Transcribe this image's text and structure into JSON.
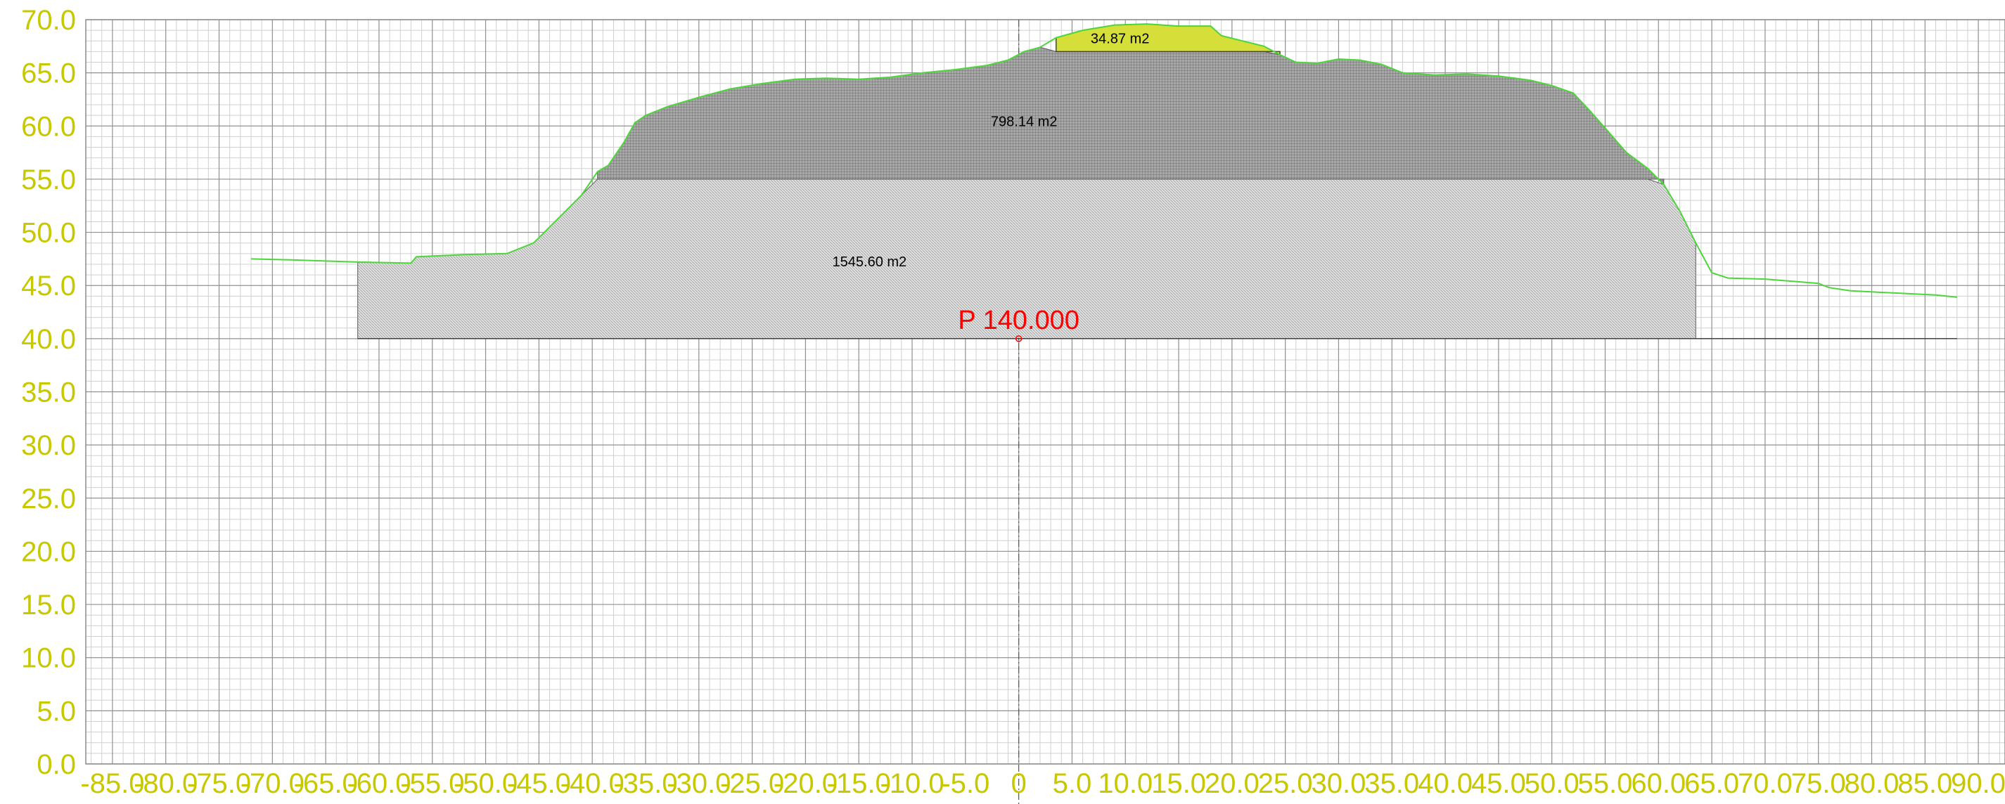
{
  "chart_data": {
    "type": "area",
    "title": "",
    "xlabel": "",
    "ylabel": "",
    "xlim": [
      -87.5,
      92.5
    ],
    "ylim": [
      0,
      70
    ],
    "grid": true,
    "y_ticks": [
      "0.0",
      "5.0",
      "10.0",
      "15.0",
      "20.0",
      "25.0",
      "30.0",
      "35.0",
      "40.0",
      "45.0",
      "50.0",
      "55.0",
      "60.0",
      "65.0",
      "70.0"
    ],
    "x_ticks": [
      "-85.0",
      "-80.0",
      "-75.0",
      "-70.0",
      "-65.0",
      "-60.0",
      "-55.0",
      "-50.0",
      "-45.0",
      "-40.0",
      "-35.0",
      "-30.0",
      "-25.0",
      "-20.0",
      "-15.0",
      "-10.0",
      "-5.0",
      "0",
      "5.0",
      "10.0",
      "15.0",
      "20.0",
      "25.0",
      "30.0",
      "35.0",
      "40.0",
      "45.0",
      "50.0",
      "55.0",
      "60.0",
      "65.0",
      "70.0",
      "75.0",
      "80.0",
      "85.0",
      "90.0"
    ],
    "station_label": "P 140.000",
    "station": {
      "x": 0,
      "y": 40
    },
    "datum_line": {
      "y": 40,
      "x_start": -62,
      "x_end": 62
    },
    "terrain_profile": [
      [
        -72,
        47.5
      ],
      [
        -68,
        47.4
      ],
      [
        -62,
        47.2
      ],
      [
        -57,
        47.1
      ],
      [
        -56.5,
        47.7
      ],
      [
        -52,
        47.9
      ],
      [
        -48,
        48.0
      ],
      [
        -45.5,
        49.0
      ],
      [
        -43.5,
        51.0
      ],
      [
        -41,
        53.5
      ],
      [
        -39.5,
        55.7
      ],
      [
        -38.5,
        56.3
      ],
      [
        -37,
        58.5
      ],
      [
        -36,
        60.3
      ],
      [
        -35,
        61.0
      ],
      [
        -33,
        61.8
      ],
      [
        -30,
        62.7
      ],
      [
        -27,
        63.5
      ],
      [
        -24,
        64.0
      ],
      [
        -21,
        64.4
      ],
      [
        -18,
        64.5
      ],
      [
        -15,
        64.4
      ],
      [
        -12,
        64.6
      ],
      [
        -9,
        65.0
      ],
      [
        -6,
        65.3
      ],
      [
        -3,
        65.7
      ],
      [
        -1,
        66.2
      ],
      [
        0.5,
        67.0
      ],
      [
        2,
        67.4
      ],
      [
        3.5,
        68.3
      ],
      [
        6,
        69.0
      ],
      [
        9,
        69.5
      ],
      [
        12,
        69.6
      ],
      [
        15,
        69.4
      ],
      [
        18,
        69.4
      ],
      [
        19,
        68.5
      ],
      [
        21,
        68.0
      ],
      [
        23,
        67.5
      ],
      [
        24.5,
        66.7
      ],
      [
        26,
        66.0
      ],
      [
        28,
        65.9
      ],
      [
        30,
        66.3
      ],
      [
        32,
        66.2
      ],
      [
        34,
        65.8
      ],
      [
        36,
        65.0
      ],
      [
        39,
        64.8
      ],
      [
        42,
        64.9
      ],
      [
        45,
        64.7
      ],
      [
        48,
        64.3
      ],
      [
        50,
        63.8
      ],
      [
        52,
        63.1
      ],
      [
        53.5,
        61.5
      ],
      [
        55,
        59.8
      ],
      [
        57,
        57.5
      ],
      [
        59,
        56.0
      ],
      [
        60.5,
        54.5
      ],
      [
        62,
        52.0
      ],
      [
        63.5,
        49.0
      ],
      [
        65,
        46.2
      ],
      [
        66.5,
        45.7
      ],
      [
        70,
        45.6
      ],
      [
        75,
        45.2
      ],
      [
        76,
        44.8
      ],
      [
        78,
        44.5
      ],
      [
        82,
        44.3
      ],
      [
        86,
        44.1
      ],
      [
        88,
        43.9
      ]
    ],
    "areas": [
      {
        "label": "34.87 m2",
        "from_y": 67.0,
        "x_range": [
          3.5,
          24.5
        ],
        "color": "#d6de3a",
        "label_at": [
          9.5,
          67.8
        ]
      },
      {
        "label": "798.14 m2",
        "from_y": 55.0,
        "x_range": [
          -39.5,
          60.5
        ],
        "color": "#8a8a8a",
        "label_at": [
          0.5,
          60.0
        ]
      },
      {
        "label": "1545.60 m2",
        "y_range": [
          40,
          55
        ],
        "x_range": [
          -62,
          63.5
        ],
        "color": "#c9c9c9",
        "label_at": [
          -14,
          46.8
        ]
      }
    ],
    "colors": {
      "axis_labels": "#c8c800",
      "terrain_line": "#4cd63a",
      "station": "#ff0000",
      "grid_major": "#909090",
      "grid_minor": "#d0d0d0"
    }
  }
}
